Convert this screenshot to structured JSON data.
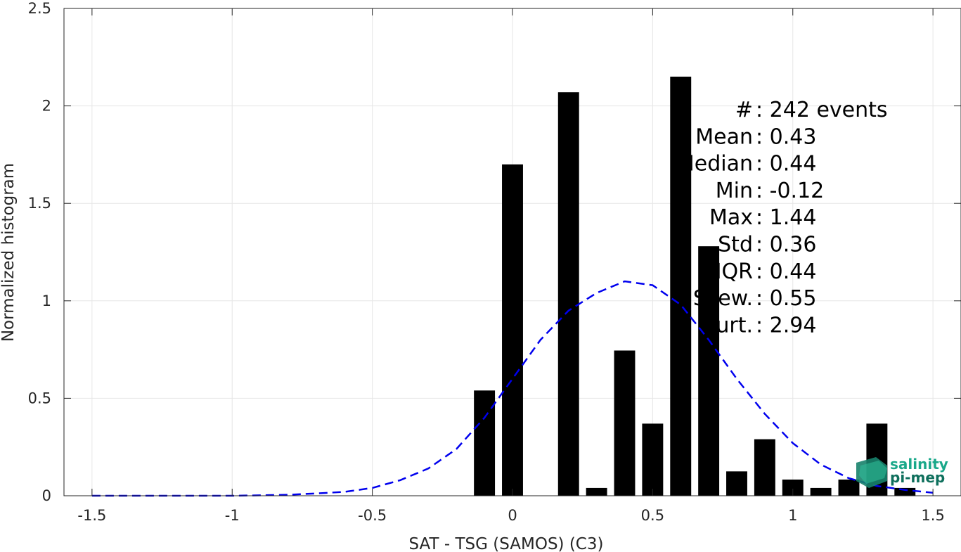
{
  "chart_data": {
    "type": "bar",
    "xlabel": "SAT - TSG (SAMOS) (C3)",
    "ylabel": "Normalized histogram",
    "xlim": [
      -1.6,
      1.6
    ],
    "ylim": [
      0,
      2.5
    ],
    "xticks": [
      -1.5,
      -1,
      -0.5,
      0,
      0.5,
      1,
      1.5
    ],
    "xtick_labels": [
      "-1.5",
      "-1",
      "-0.5",
      "0",
      "0.5",
      "1",
      "1.5"
    ],
    "yticks": [
      0,
      0.5,
      1,
      1.5,
      2,
      2.5
    ],
    "ytick_labels": [
      "0",
      "0.5",
      "1",
      "1.5",
      "2",
      "2.5"
    ],
    "grid": true,
    "bar_width": 0.075,
    "bars": [
      {
        "x": -0.1,
        "y": 0.54
      },
      {
        "x": 0.0,
        "y": 1.7
      },
      {
        "x": 0.2,
        "y": 2.07
      },
      {
        "x": 0.3,
        "y": 0.04
      },
      {
        "x": 0.4,
        "y": 0.745
      },
      {
        "x": 0.5,
        "y": 0.37
      },
      {
        "x": 0.6,
        "y": 2.15
      },
      {
        "x": 0.7,
        "y": 1.28
      },
      {
        "x": 0.8,
        "y": 0.125
      },
      {
        "x": 0.9,
        "y": 0.29
      },
      {
        "x": 1.0,
        "y": 0.083
      },
      {
        "x": 1.1,
        "y": 0.04
      },
      {
        "x": 1.2,
        "y": 0.083
      },
      {
        "x": 1.3,
        "y": 0.37
      },
      {
        "x": 1.4,
        "y": 0.04
      }
    ],
    "fit_curve": {
      "style": "dashed",
      "color": "#0000ee",
      "x": [
        -1.5,
        -1.4,
        -1.3,
        -1.2,
        -1.1,
        -1.0,
        -0.9,
        -0.8,
        -0.7,
        -0.6,
        -0.5,
        -0.4,
        -0.3,
        -0.2,
        -0.1,
        0.0,
        0.1,
        0.2,
        0.3,
        0.4,
        0.5,
        0.6,
        0.7,
        0.8,
        0.9,
        1.0,
        1.1,
        1.2,
        1.3,
        1.4,
        1.5
      ],
      "y": [
        0.0,
        0.0,
        0.0,
        0.0,
        0.0,
        0.0,
        0.002,
        0.005,
        0.012,
        0.02,
        0.04,
        0.08,
        0.14,
        0.24,
        0.4,
        0.6,
        0.8,
        0.95,
        1.04,
        1.1,
        1.08,
        0.98,
        0.8,
        0.6,
        0.42,
        0.27,
        0.16,
        0.09,
        0.05,
        0.03,
        0.015
      ]
    },
    "annotations": [
      {
        "label": "#",
        "sep": " : ",
        "value": "242 events"
      },
      {
        "label": "Mean",
        "sep": " : ",
        "value": "0.43"
      },
      {
        "label": "Median",
        "sep": " : ",
        "value": "0.44"
      },
      {
        "label": "Min",
        "sep": " : ",
        "value": "-0.12"
      },
      {
        "label": "Max",
        "sep": " : ",
        "value": "1.44"
      },
      {
        "label": "Std",
        "sep": " : ",
        "value": "0.36"
      },
      {
        "label": "IQR",
        "sep": " : ",
        "value": "0.44"
      },
      {
        "label": "Skew.",
        "sep": " : ",
        "value": "0.55"
      },
      {
        "label": "Kurt.",
        "sep": " : ",
        "value": "2.94"
      }
    ]
  },
  "logo": {
    "line1": "salinity",
    "line2": "pi-mep",
    "color1": "#1aa88a",
    "color2": "#0e6f5c"
  },
  "colors": {
    "bars": "#000000",
    "grid": "#e6e6e6",
    "axis": "#262626",
    "fit": "#0000ee"
  }
}
